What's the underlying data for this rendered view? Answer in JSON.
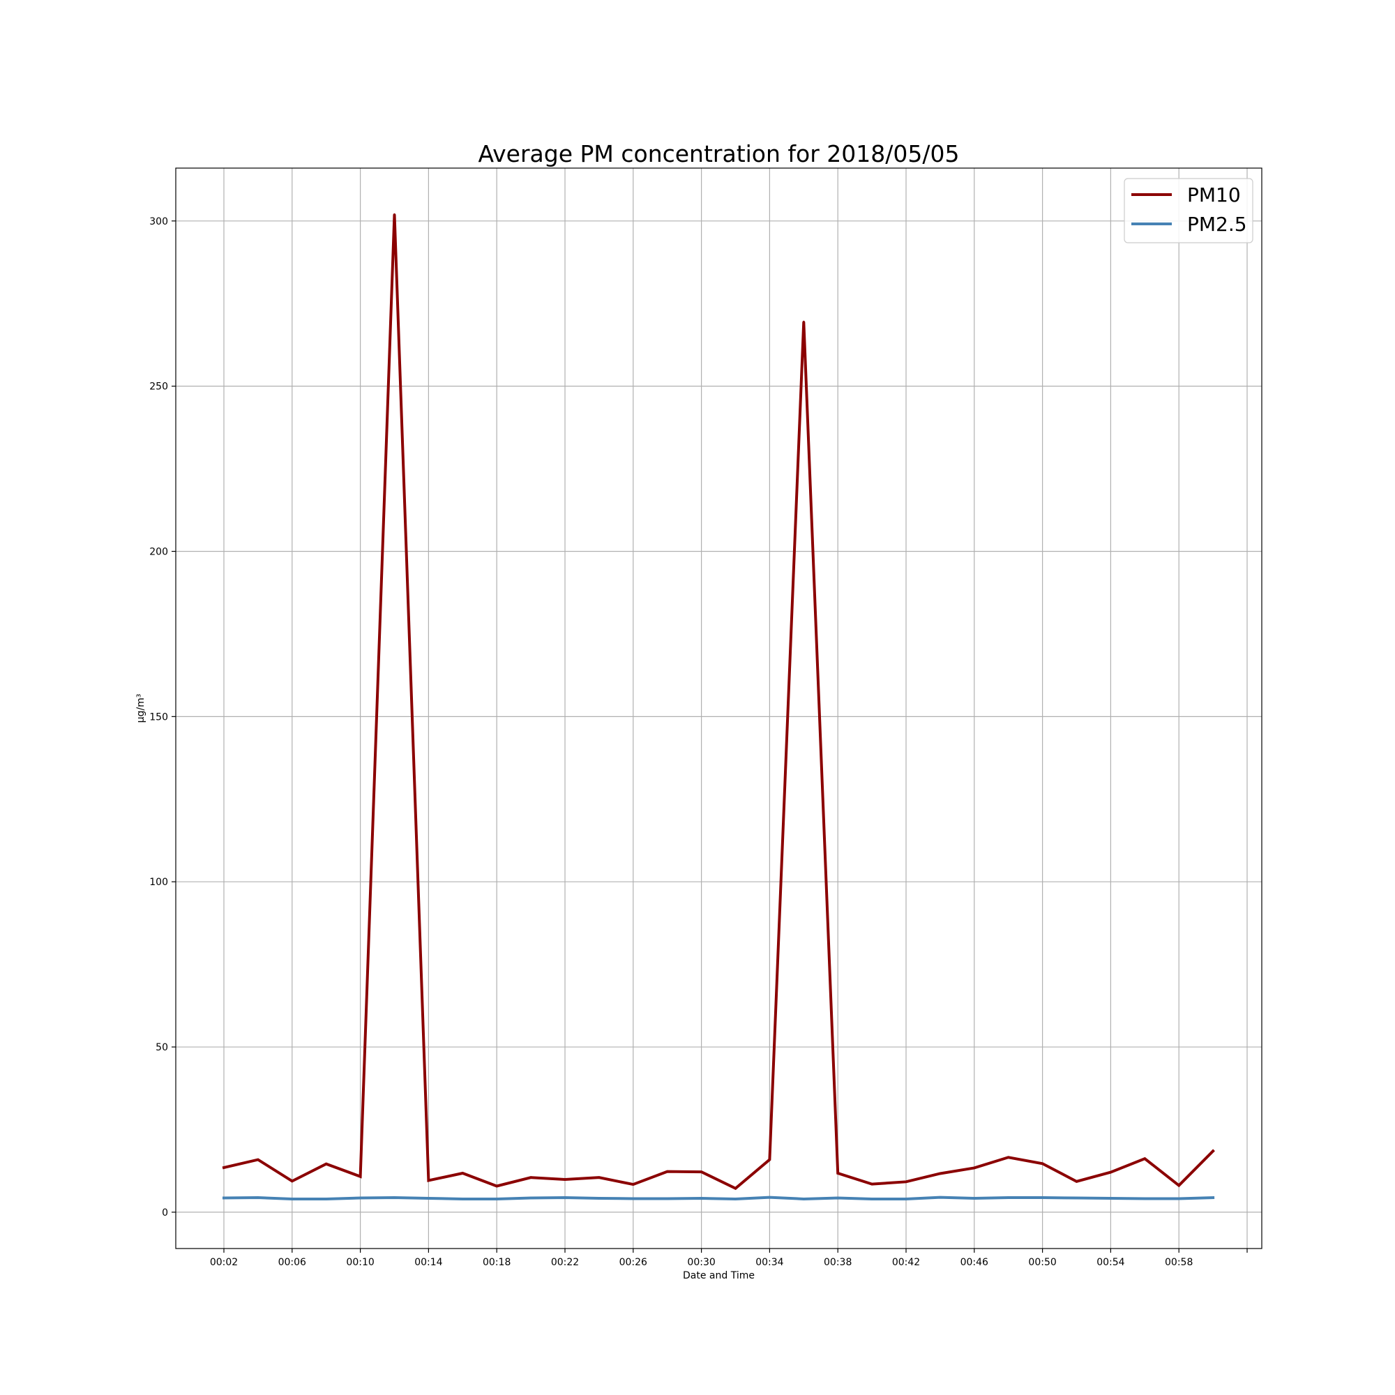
{
  "chart_data": {
    "type": "line",
    "title": "Average PM concentration for 2018/05/05",
    "xlabel": "Date and Time",
    "ylabel": "µg/m³",
    "x": [
      "00:02",
      "00:04",
      "00:06",
      "00:08",
      "00:10",
      "00:12",
      "00:14",
      "00:16",
      "00:18",
      "00:20",
      "00:22",
      "00:24",
      "00:26",
      "00:28",
      "00:30",
      "00:32",
      "00:34",
      "00:36",
      "00:38",
      "00:40",
      "00:42",
      "00:44",
      "00:46",
      "00:48",
      "00:50",
      "00:52",
      "00:54",
      "00:56",
      "00:58",
      "01:00"
    ],
    "xticks": [
      "00:02",
      "00:06",
      "00:10",
      "00:14",
      "00:18",
      "00:22",
      "00:26",
      "00:30",
      "00:34",
      "00:38",
      "00:42",
      "00:46",
      "00:50",
      "00:54",
      "00:58"
    ],
    "ylim": [
      -11,
      316
    ],
    "yticks": [
      0,
      50,
      100,
      150,
      200,
      250,
      300
    ],
    "grid": true,
    "legend_position": "top-right",
    "series": [
      {
        "name": "PM10",
        "color": "#8b0000",
        "values": [
          13.5,
          15.9,
          9.4,
          14.6,
          10.8,
          302.0,
          9.6,
          11.8,
          7.9,
          10.5,
          9.9,
          10.5,
          8.4,
          12.3,
          12.2,
          7.2,
          15.9,
          269.5,
          11.8,
          8.5,
          9.2,
          11.7,
          13.4,
          16.6,
          14.7,
          9.3,
          12.1,
          16.2,
          8.1,
          18.5
        ]
      },
      {
        "name": "PM2.5",
        "color": "#4682b4",
        "values": [
          4.3,
          4.4,
          4.0,
          4.0,
          4.3,
          4.4,
          4.2,
          4.0,
          4.0,
          4.3,
          4.4,
          4.2,
          4.1,
          4.1,
          4.2,
          4.0,
          4.5,
          4.0,
          4.3,
          4.0,
          4.0,
          4.5,
          4.2,
          4.4,
          4.4,
          4.3,
          4.2,
          4.1,
          4.1,
          4.4
        ]
      }
    ]
  }
}
